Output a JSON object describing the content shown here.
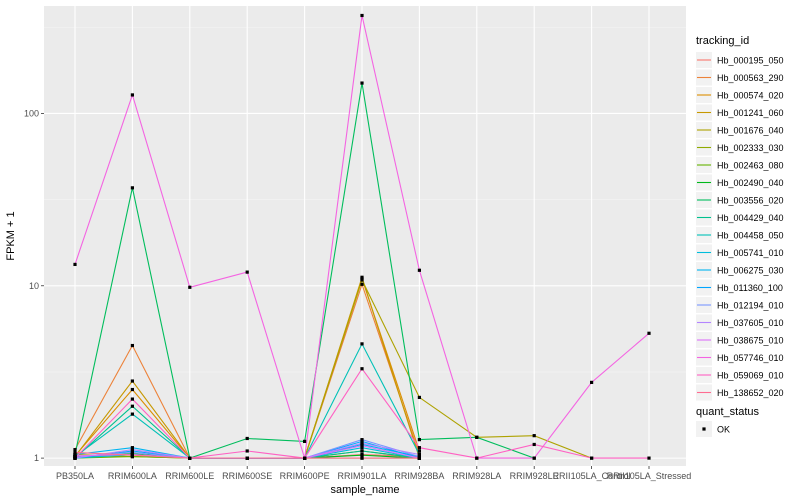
{
  "chart_data": {
    "type": "line",
    "title": "",
    "xlabel": "sample_name",
    "ylabel": "FPKM + 1",
    "y_scale": "log10",
    "ylim": [
      0.9,
      420
    ],
    "y_ticks": [
      1,
      10,
      100
    ],
    "y_tick_labels": [
      "1",
      "10",
      "100"
    ],
    "grid": true,
    "categories": [
      "PB350LA",
      "RRIM600LA",
      "RRIM600LE",
      "RRIM600SE",
      "RRIM600PE",
      "RRIM901LA",
      "RRIM928BA",
      "RRIM928LA",
      "RRIM928LE",
      "RRII105LA_Control",
      "RRII105LA_Stressed"
    ],
    "category_labels": [
      "PB350LA",
      "RRIM600LA",
      "RRIM600LE",
      "RRIM600SE",
      "RRIM600PE",
      "RRIM901LA",
      "RRIM928BA",
      "RRIM928LA",
      "RRIM928LE",
      "RRII105LA_Control",
      "RRII105LA_Stressed"
    ],
    "legend": {
      "title": "tracking_id",
      "position": "right",
      "status_title": "quant_status",
      "status_entries": [
        "OK"
      ]
    },
    "series": [
      {
        "name": "Hb_000195_050",
        "color": "#F8766D",
        "values": [
          1.02,
          1.05,
          1,
          1,
          1,
          1.05,
          1.02,
          null,
          null,
          null,
          null
        ]
      },
      {
        "name": "Hb_000563_290",
        "color": "#EC8239",
        "values": [
          1.12,
          4.5,
          1,
          1,
          1,
          10.2,
          1.05,
          null,
          null,
          null,
          null
        ]
      },
      {
        "name": "Hb_000574_020",
        "color": "#DB8E00",
        "values": [
          1.03,
          2.5,
          1,
          1,
          1,
          11.0,
          1.1,
          null,
          null,
          null,
          null
        ]
      },
      {
        "name": "Hb_001241_060",
        "color": "#C79800",
        "values": [
          1.02,
          2.8,
          1,
          1,
          1,
          11.2,
          1.0,
          null,
          null,
          null,
          null
        ]
      },
      {
        "name": "Hb_001676_040",
        "color": "#AEA200",
        "values": [
          1.05,
          1.02,
          1,
          1,
          1,
          10.8,
          2.25,
          1.32,
          1.35,
          1,
          null
        ]
      },
      {
        "name": "Hb_002333_030",
        "color": "#8FAA00",
        "values": [
          1.0,
          1.05,
          1,
          1,
          1,
          1.1,
          1.0,
          null,
          null,
          null,
          null
        ]
      },
      {
        "name": "Hb_002463_080",
        "color": "#64B200",
        "values": [
          1.0,
          1.02,
          1,
          1,
          1,
          1.0,
          1.0,
          null,
          null,
          null,
          null
        ]
      },
      {
        "name": "Hb_002490_040",
        "color": "#00B81B",
        "values": [
          1.02,
          1.06,
          1,
          1,
          1,
          1.04,
          1.0,
          null,
          null,
          null,
          null
        ]
      },
      {
        "name": "Hb_003556_020",
        "color": "#00BD5C",
        "values": [
          1.05,
          37,
          1,
          1.3,
          1.25,
          150,
          1.28,
          1.32,
          1,
          null,
          null
        ]
      },
      {
        "name": "Hb_004429_040",
        "color": "#00C08E",
        "values": [
          1.0,
          2.0,
          1,
          1,
          1,
          1.1,
          1.0,
          null,
          null,
          null,
          null
        ]
      },
      {
        "name": "Hb_004458_050",
        "color": "#00C1B7",
        "values": [
          1.02,
          1.8,
          1,
          1,
          1,
          4.6,
          1.05,
          null,
          null,
          null,
          null
        ]
      },
      {
        "name": "Hb_005741_010",
        "color": "#00BDDC",
        "values": [
          1.0,
          1.05,
          1,
          1,
          1,
          1.15,
          1.0,
          null,
          null,
          null,
          null
        ]
      },
      {
        "name": "Hb_006275_030",
        "color": "#00B4F0",
        "values": [
          1.05,
          1.15,
          1,
          1,
          1,
          1.2,
          1.02,
          null,
          null,
          null,
          null
        ]
      },
      {
        "name": "Hb_011360_100",
        "color": "#00A5FF",
        "values": [
          1.0,
          1.1,
          1,
          1,
          1,
          1.25,
          1.0,
          null,
          null,
          null,
          null
        ]
      },
      {
        "name": "Hb_012194_010",
        "color": "#7997FF",
        "values": [
          1.02,
          1.08,
          1,
          1,
          1,
          1.28,
          1.02,
          null,
          null,
          null,
          null
        ]
      },
      {
        "name": "Hb_037605_010",
        "color": "#B385FF",
        "values": [
          1.0,
          1.12,
          1,
          1,
          1,
          1.22,
          1.05,
          null,
          null,
          null,
          null
        ]
      },
      {
        "name": "Hb_038675_010",
        "color": "#DC71FA",
        "values": [
          1.03,
          1.05,
          1,
          1,
          1,
          1.18,
          1.0,
          null,
          null,
          null,
          null
        ]
      },
      {
        "name": "Hb_057746_010",
        "color": "#F464E2",
        "values": [
          13.3,
          128,
          9.8,
          12,
          1,
          370,
          12.3,
          1,
          1,
          2.75,
          5.3
        ]
      },
      {
        "name": "Hb_059069_010",
        "color": "#FF61C3",
        "values": [
          1.0,
          2.2,
          1,
          1.1,
          1,
          3.3,
          1.15,
          1,
          1.2,
          1,
          1
        ]
      },
      {
        "name": "Hb_138652_020",
        "color": "#FF6C91",
        "values": [
          1.08,
          1.04,
          1,
          1,
          1,
          1.0,
          1.0,
          null,
          null,
          null,
          null
        ]
      }
    ]
  }
}
